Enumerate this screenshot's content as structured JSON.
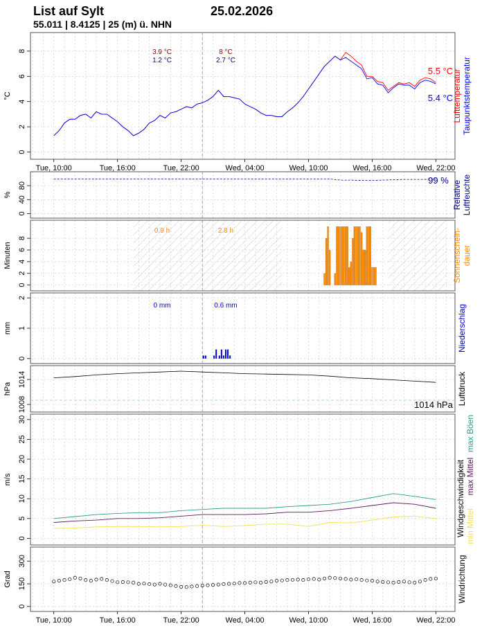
{
  "header": {
    "station": "List auf Sylt",
    "date": "25.02.2026",
    "coords": "55.011 | 8.4125 | 25 (m) ü. NHN"
  },
  "colors": {
    "temperature": "#ff0000",
    "dewpoint": "#0000ff",
    "humidity": "#00008b",
    "sunshine": "#ff8c00",
    "precipitation": "#0000cd",
    "pressure": "#000000",
    "gusts": "#2a9d8f",
    "wind_max": "#5b1a5e",
    "wind_min": "#f5e050",
    "night_hatch": "#cccccc",
    "grid": "#c8c8c8",
    "marker": "#999999"
  },
  "time_axis": {
    "tick_labels": [
      "Tue, 10:00",
      "Tue, 16:00",
      "Tue, 22:00",
      "Wed, 04:00",
      "Wed, 10:00",
      "Wed, 16:00",
      "Wed, 22:00"
    ],
    "tick_hours": [
      10,
      16,
      22,
      28,
      34,
      40,
      46
    ],
    "range_hours": [
      7.8,
      47.8
    ],
    "marker_hour": 24
  },
  "chart_data": [
    {
      "id": "temp",
      "type": "line",
      "ylabel": "°C",
      "ylim": [
        -0.3,
        9.2
      ],
      "yticks": [
        0,
        2,
        4,
        6,
        8
      ],
      "grid": true,
      "legend": [
        "Lufttemperatur",
        "Taupunktstemperatur"
      ],
      "series": [
        {
          "name": "Lufttemperatur",
          "x": [
            10,
            10.5,
            11,
            11.5,
            12,
            12.5,
            13,
            13.5,
            14,
            14.5,
            15,
            15.5,
            16,
            16.5,
            17,
            17.5,
            18,
            18.5,
            19,
            19.5,
            20,
            20.5,
            21,
            21.5,
            22,
            22.5,
            23,
            23.5,
            24,
            24.5,
            25,
            25.5,
            26,
            26.5,
            27,
            27.5,
            28,
            28.5,
            29,
            29.5,
            30,
            30.5,
            31,
            31.5,
            32,
            32.5,
            33,
            33.5,
            34,
            34.5,
            35,
            35.5,
            36,
            36.5,
            37,
            37.5,
            38,
            38.5,
            39,
            39.5,
            40,
            40.5,
            41,
            41.5,
            42,
            42.5,
            43,
            43.5,
            44,
            44.5,
            45,
            45.5,
            46
          ],
          "values": [
            1.3,
            1.7,
            2.3,
            2.6,
            2.6,
            2.9,
            3.0,
            2.7,
            3.2,
            3.0,
            3.0,
            2.7,
            2.4,
            2.0,
            1.7,
            1.3,
            1.5,
            1.8,
            2.3,
            2.5,
            2.9,
            2.7,
            3.1,
            3.2,
            3.4,
            3.6,
            3.5,
            3.8,
            3.9,
            4.1,
            4.4,
            4.9,
            4.4,
            4.4,
            4.3,
            4.2,
            3.8,
            3.6,
            3.4,
            3.1,
            2.9,
            2.9,
            2.8,
            2.8,
            3.2,
            3.5,
            3.9,
            4.4,
            5.0,
            5.6,
            6.2,
            6.8,
            7.2,
            7.6,
            7.3,
            7.9,
            7.6,
            7.2,
            6.9,
            6.0,
            6.0,
            5.6,
            5.5,
            4.9,
            5.2,
            5.5,
            5.4,
            5.5,
            5.2,
            5.7,
            5.9,
            5.8,
            5.5
          ]
        },
        {
          "name": "Taupunktstemperatur",
          "x": [
            10,
            10.5,
            11,
            11.5,
            12,
            12.5,
            13,
            13.5,
            14,
            14.5,
            15,
            15.5,
            16,
            16.5,
            17,
            17.5,
            18,
            18.5,
            19,
            19.5,
            20,
            20.5,
            21,
            21.5,
            22,
            22.5,
            23,
            23.5,
            24,
            24.5,
            25,
            25.5,
            26,
            26.5,
            27,
            27.5,
            28,
            28.5,
            29,
            29.5,
            30,
            30.5,
            31,
            31.5,
            32,
            32.5,
            33,
            33.5,
            34,
            34.5,
            35,
            35.5,
            36,
            36.5,
            37,
            37.5,
            38,
            38.5,
            39,
            39.5,
            40,
            40.5,
            41,
            41.5,
            42,
            42.5,
            43,
            43.5,
            44,
            44.5,
            45,
            45.5,
            46
          ],
          "values": [
            1.3,
            1.7,
            2.3,
            2.6,
            2.6,
            2.9,
            3.0,
            2.7,
            3.2,
            3.0,
            3.0,
            2.7,
            2.4,
            2.0,
            1.7,
            1.3,
            1.5,
            1.8,
            2.3,
            2.5,
            2.9,
            2.7,
            3.1,
            3.2,
            3.4,
            3.6,
            3.5,
            3.8,
            3.9,
            4.1,
            4.4,
            4.9,
            4.4,
            4.4,
            4.3,
            4.2,
            3.8,
            3.6,
            3.4,
            3.1,
            2.9,
            2.9,
            2.8,
            2.8,
            3.2,
            3.5,
            3.9,
            4.4,
            5.0,
            5.6,
            6.2,
            6.8,
            7.2,
            7.6,
            7.3,
            7.5,
            7.2,
            6.9,
            6.6,
            5.8,
            5.9,
            5.4,
            5.3,
            4.7,
            5.1,
            5.4,
            5.3,
            5.3,
            5.0,
            5.5,
            5.7,
            5.6,
            5.4
          ]
        }
      ],
      "annotations": [
        {
          "hour": 20.2,
          "top": "3.9 °C",
          "bottom": "1.2 °C"
        },
        {
          "hour": 26.2,
          "top": "8 °C",
          "bottom": "2.7 °C"
        }
      ],
      "current": [
        {
          "label": "5.5 °C",
          "color": "#ff0000"
        },
        {
          "label": "5.4 °C",
          "color": "#0000ff"
        }
      ]
    },
    {
      "id": "humidity",
      "type": "line",
      "ylabel": "%",
      "ylim": [
        -3,
        110
      ],
      "yticks": [
        0,
        40,
        80
      ],
      "grid": true,
      "legend": [
        "Relative Luftfeuchte"
      ],
      "series": [
        {
          "name": "Relative Luftfeuchte",
          "x": [
            10,
            36,
            37,
            38,
            39,
            40,
            41,
            42,
            43,
            44,
            45,
            46
          ],
          "values": [
            99,
            99,
            96,
            96,
            95,
            95,
            96,
            97,
            98,
            98,
            98,
            99
          ]
        }
      ],
      "current": [
        {
          "label": "99 %",
          "color": "#00008b"
        }
      ]
    },
    {
      "id": "sunshine",
      "type": "bar",
      "ylabel": "Minuten",
      "ylim": [
        -0.4,
        10.5
      ],
      "yticks": [
        0,
        2,
        4,
        6,
        8
      ],
      "grid": true,
      "legend": [
        "Sonnenschein-",
        "dauer"
      ],
      "night_hours": [
        [
          17.5,
          31.5
        ],
        [
          41.5,
          47
        ]
      ],
      "x": [
        35.5,
        35.67,
        35.83,
        36.0,
        36.17,
        36.33,
        36.5,
        36.67,
        36.83,
        37.0,
        37.17,
        37.33,
        37.5,
        37.67,
        37.83,
        38.0,
        38.17,
        38.33,
        38.5,
        38.67,
        38.83,
        39.0,
        39.17,
        39.33,
        39.5,
        39.67,
        39.83,
        40.0,
        40.17,
        40.33
      ],
      "values": [
        2,
        8,
        10,
        6,
        0,
        0,
        2,
        10,
        10,
        10,
        10,
        10,
        10,
        10,
        3,
        4,
        8,
        10,
        10,
        10,
        10,
        9,
        6,
        6,
        10,
        10,
        10,
        3,
        3,
        3
      ],
      "annotations": [
        {
          "hour": 20.2,
          "label": "0.9 h"
        },
        {
          "hour": 26.2,
          "label": "2.8 h"
        }
      ]
    },
    {
      "id": "precip",
      "type": "bar",
      "ylabel": "mm",
      "ylim": [
        -0.05,
        2.05
      ],
      "yticks": [
        0.0,
        1.0,
        2.0
      ],
      "grid": true,
      "legend": [
        "Niederschlag"
      ],
      "x": [
        24.1,
        24.3,
        25.1,
        25.3,
        25.6,
        25.8,
        26.0,
        26.2,
        26.4,
        26.6
      ],
      "values": [
        0.1,
        0.1,
        0.1,
        0.3,
        0.1,
        0.3,
        0.1,
        0.3,
        0.3,
        0.1
      ],
      "annotations": [
        {
          "hour": 20.2,
          "label": "0 mm"
        },
        {
          "hour": 26.2,
          "label": "0.6 mm"
        }
      ]
    },
    {
      "id": "pressure",
      "type": "line",
      "ylabel": "hPa",
      "ylim": [
        1007.0,
        1016.5
      ],
      "yticks": [
        1008,
        1014
      ],
      "grid": true,
      "legend": [
        "Luftdruck"
      ],
      "reference_line": 1009,
      "series": [
        {
          "name": "Luftdruck",
          "x": [
            10,
            12,
            14,
            16,
            18,
            20,
            22,
            24,
            26,
            28,
            30,
            32,
            34,
            36,
            38,
            40,
            42,
            44,
            46
          ],
          "values": [
            1014.4,
            1014.7,
            1015.1,
            1015.4,
            1015.6,
            1015.8,
            1016.0,
            1015.8,
            1015.6,
            1015.4,
            1015.3,
            1015.2,
            1015.1,
            1014.8,
            1014.4,
            1014.2,
            1013.9,
            1013.6,
            1013.3
          ]
        }
      ],
      "current": [
        {
          "label": "1014 hPa",
          "color": "#000000"
        }
      ]
    },
    {
      "id": "wind",
      "type": "line",
      "ylabel": "m/s",
      "ylim": [
        -0.8,
        30.5
      ],
      "yticks": [
        0,
        5,
        10,
        15,
        20,
        25,
        30
      ],
      "grid": true,
      "legend": [
        "Windgeschwindigkeit",
        "max Mittel",
        "max Böen",
        "min Mittel"
      ],
      "series": [
        {
          "name": "max Böen",
          "x": [
            10,
            12,
            14,
            16,
            18,
            20,
            22,
            24,
            26,
            28,
            30,
            32,
            34,
            36,
            38,
            40,
            42,
            44,
            46
          ],
          "values": [
            5.0,
            5.5,
            6.0,
            6.3,
            6.5,
            6.5,
            7.0,
            7.3,
            7.6,
            7.6,
            7.6,
            8.0,
            8.3,
            8.6,
            9.3,
            10.3,
            11.3,
            10.6,
            9.8
          ]
        },
        {
          "name": "max Mittel",
          "x": [
            10,
            12,
            14,
            16,
            18,
            20,
            22,
            24,
            26,
            28,
            30,
            32,
            34,
            36,
            38,
            40,
            42,
            44,
            46
          ],
          "values": [
            4.0,
            4.4,
            4.6,
            5.0,
            5.0,
            5.2,
            5.6,
            6.0,
            6.0,
            6.0,
            6.2,
            6.6,
            6.6,
            7.0,
            7.6,
            8.3,
            9.0,
            8.6,
            7.6
          ]
        },
        {
          "name": "min Mittel",
          "x": [
            10,
            12,
            14,
            16,
            18,
            20,
            22,
            24,
            26,
            28,
            30,
            32,
            34,
            36,
            38,
            40,
            42,
            44,
            46
          ],
          "values": [
            2.5,
            2.6,
            2.9,
            3.0,
            3.0,
            2.9,
            3.0,
            3.3,
            3.0,
            3.2,
            3.6,
            3.6,
            3.0,
            4.0,
            3.9,
            4.6,
            5.4,
            5.6,
            5.0
          ]
        }
      ]
    },
    {
      "id": "direction",
      "type": "scatter",
      "ylabel": "Grad",
      "ylim": [
        -10,
        370
      ],
      "yticks": [
        0,
        150,
        300
      ],
      "grid": true,
      "legend": [
        "Windrichtung"
      ],
      "x": [
        10,
        10.5,
        11,
        11.5,
        12,
        12.5,
        13,
        13.5,
        14,
        14.5,
        15,
        15.5,
        16,
        16.5,
        17,
        17.5,
        18,
        18.5,
        19,
        19.5,
        20,
        20.5,
        21,
        21.5,
        22,
        22.5,
        23,
        23.5,
        24,
        24.5,
        25,
        25.5,
        26,
        26.5,
        27,
        27.5,
        28,
        28.5,
        29,
        29.5,
        30,
        30.5,
        31,
        31.5,
        32,
        32.5,
        33,
        33.5,
        34,
        34.5,
        35,
        35.5,
        36,
        36.5,
        37,
        37.5,
        38,
        38.5,
        39,
        39.5,
        40,
        40.5,
        41,
        41.5,
        42,
        42.5,
        43,
        43.5,
        44,
        44.5,
        45,
        45.5,
        46
      ],
      "values": [
        165,
        170,
        175,
        180,
        190,
        185,
        175,
        170,
        178,
        182,
        175,
        168,
        160,
        162,
        160,
        158,
        150,
        152,
        148,
        145,
        150,
        145,
        140,
        135,
        130,
        128,
        132,
        135,
        138,
        140,
        142,
        145,
        148,
        150,
        152,
        155,
        155,
        158,
        160,
        158,
        162,
        165,
        170,
        172,
        175,
        176,
        178,
        175,
        180,
        182,
        178,
        185,
        190,
        188,
        185,
        182,
        178,
        180,
        175,
        172,
        170,
        165,
        162,
        160,
        158,
        162,
        165,
        160,
        158,
        165,
        175,
        182,
        185
      ]
    }
  ]
}
